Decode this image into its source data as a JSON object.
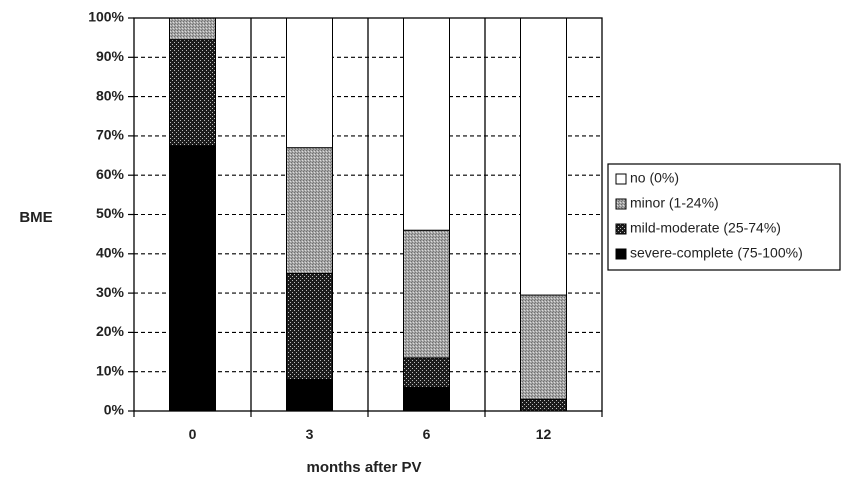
{
  "chart_data": {
    "type": "bar",
    "stacked": true,
    "percent_stacked": true,
    "categories": [
      "0",
      "3",
      "6",
      "12"
    ],
    "series": [
      {
        "name": "severe-complete (75-100%)",
        "pattern": "solid-black",
        "values": [
          67.5,
          8,
          6,
          0
        ]
      },
      {
        "name": "mild-moderate (25-74%)",
        "pattern": "dense-dots",
        "values": [
          27,
          27,
          7.5,
          3
        ]
      },
      {
        "name": "minor (1-24%)",
        "pattern": "gray-stipple",
        "values": [
          5.5,
          32,
          32.5,
          26.5
        ]
      },
      {
        "name": "no (0%)",
        "pattern": "white",
        "values": [
          0,
          33,
          54,
          70.5
        ]
      }
    ],
    "xlabel": "months after PV",
    "ylabel": "BME",
    "ylim": [
      0,
      100
    ],
    "yticks": [
      "0%",
      "10%",
      "20%",
      "30%",
      "40%",
      "50%",
      "60%",
      "70%",
      "80%",
      "90%",
      "100%"
    ],
    "grid": "horizontal dashed",
    "legend_position": "right",
    "legend_order": [
      "no (0%)",
      "minor (1-24%)",
      "mild-moderate (25-74%)",
      "severe-complete (75-100%)"
    ]
  }
}
